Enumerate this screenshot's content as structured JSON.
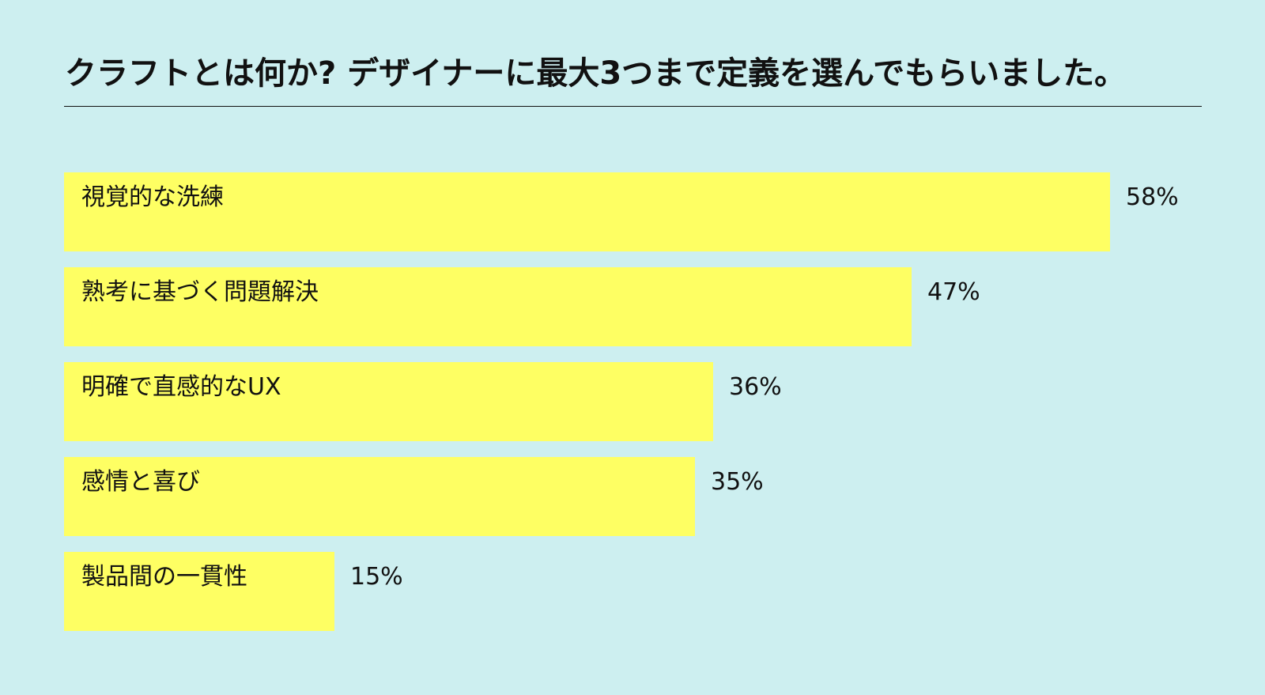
{
  "chart_data": {
    "type": "bar",
    "orientation": "horizontal",
    "title": "クラフトとは何か? デザイナーに最大3つまで定義を選んでもらいました。",
    "categories": [
      "視覚的な洗練",
      "熟考に基づく問題解決",
      "明確で直感的なUX",
      "感情と喜び",
      "製品間の一貫性"
    ],
    "values": [
      58,
      47,
      36,
      35,
      15
    ],
    "value_labels": [
      "58%",
      "47%",
      "36%",
      "35%",
      "15%"
    ],
    "unit": "%",
    "xlim": [
      0,
      58
    ],
    "grid": false,
    "legend": "none"
  },
  "colors": {
    "background": "#cdeff0",
    "bar": "#feff63",
    "text": "#111111"
  }
}
